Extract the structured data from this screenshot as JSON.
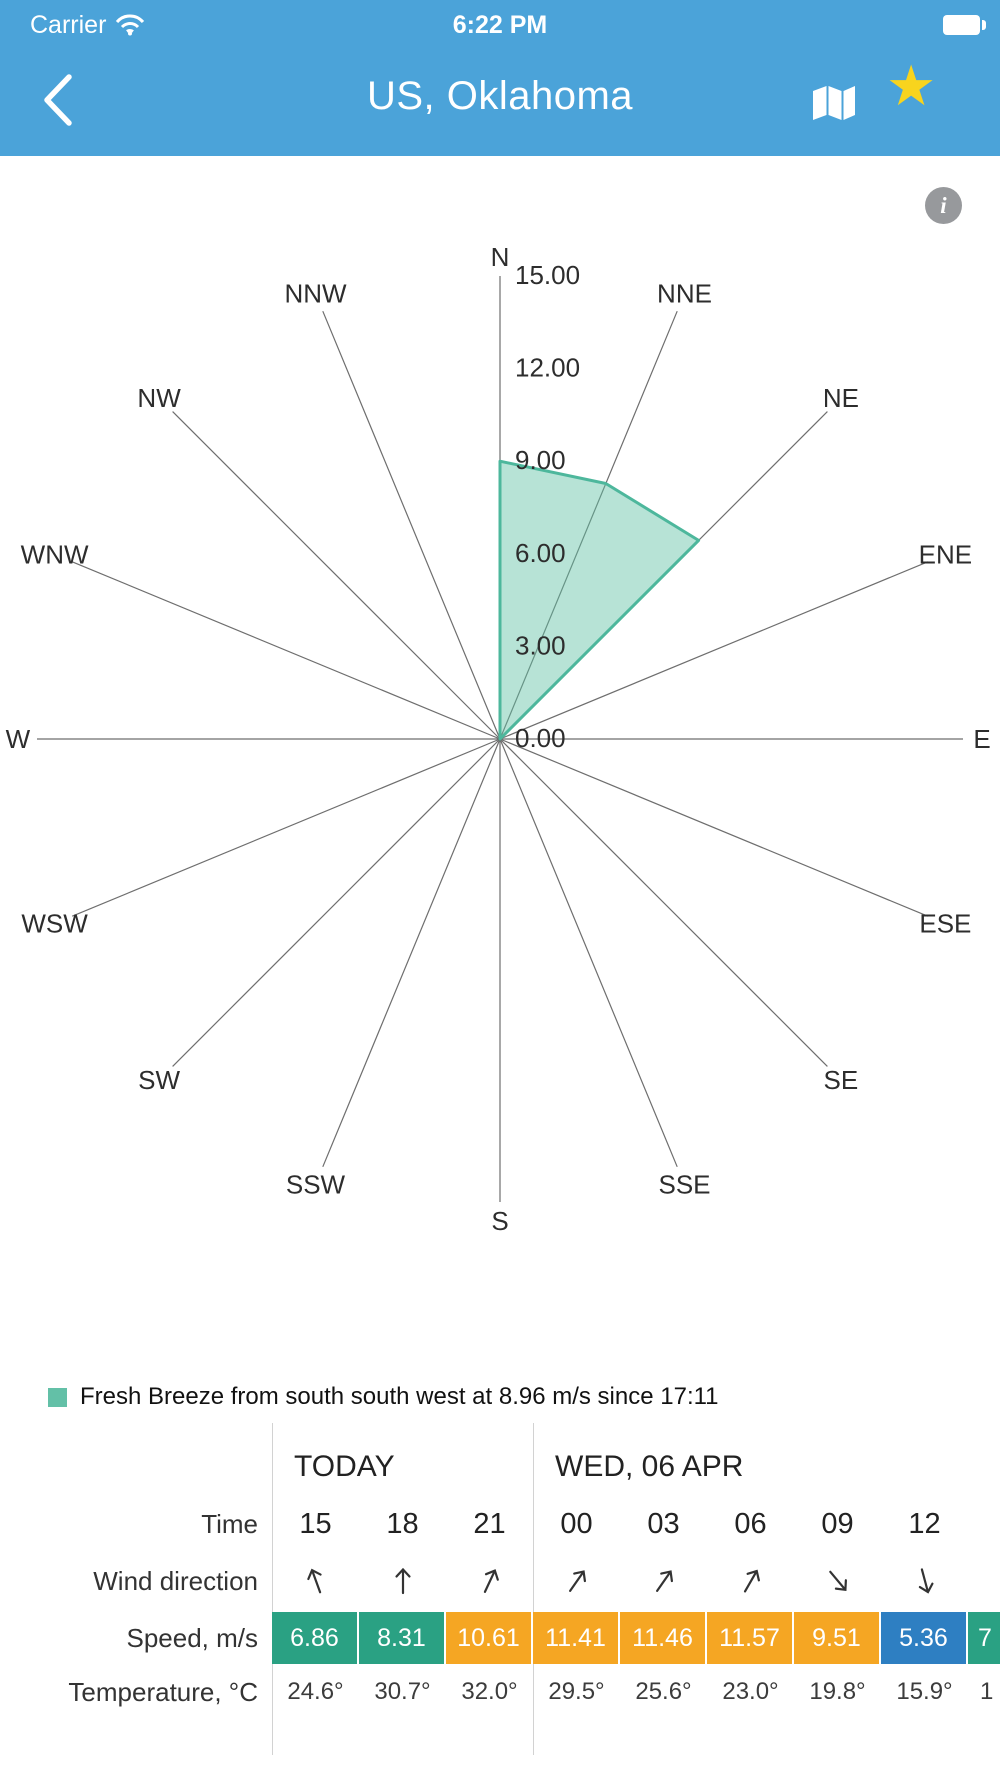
{
  "status_bar": {
    "carrier": "Carrier",
    "time": "6:22 PM"
  },
  "nav_bar": {
    "title": "US, Oklahoma",
    "star_glyph": "★",
    "bar_color": "#4ba3d9",
    "star_color": "#f8d41e"
  },
  "info_button": {
    "label": "i"
  },
  "chart_data": {
    "type": "wind-rose",
    "directions": [
      "N",
      "NNE",
      "NE",
      "ENE",
      "E",
      "ESE",
      "SE",
      "SSE",
      "S",
      "SSW",
      "SW",
      "WSW",
      "W",
      "WNW",
      "NW",
      "NNW"
    ],
    "values": [
      9.0,
      8.96,
      9.1,
      0,
      0,
      0,
      0,
      0,
      0,
      0,
      0,
      0,
      0,
      0,
      0,
      0
    ],
    "tick_values": [
      0,
      3,
      6,
      9,
      12,
      15
    ],
    "tick_labels": [
      "0.00",
      "3.00",
      "6.00",
      "9.00",
      "12.00",
      "15.00"
    ],
    "rmax": 15,
    "units": "m/s",
    "sector_fill": "#5fc0a5",
    "sector_fill_opacity": 0.45,
    "sector_stroke": "#4db79c",
    "axis_color": "#6e6e6e"
  },
  "legend": {
    "swatch_color": "#63c0a7",
    "text": "Fresh Breeze from south south west at 8.96 m/s since 17:11"
  },
  "forecast_table": {
    "groups": [
      {
        "label": "TODAY",
        "span": 3
      },
      {
        "label": "WED, 06 APR",
        "span": 6
      }
    ],
    "row_labels": {
      "time": "Time",
      "wind": "Wind direction",
      "speed": "Speed, m/s",
      "temp": "Temperature, °C"
    },
    "columns": [
      {
        "time": "15",
        "wind_deg": -20,
        "speed": "6.86",
        "speed_color": "#2aa183",
        "temp": "24.6°"
      },
      {
        "time": "18",
        "wind_deg": 0,
        "speed": "8.31",
        "speed_color": "#2aa183",
        "temp": "30.7°"
      },
      {
        "time": "21",
        "wind_deg": 25,
        "speed": "10.61",
        "speed_color": "#f5a623",
        "temp": "32.0°"
      },
      {
        "time": "00",
        "wind_deg": 35,
        "speed": "11.41",
        "speed_color": "#f5a623",
        "temp": "29.5°"
      },
      {
        "time": "03",
        "wind_deg": 35,
        "speed": "11.46",
        "speed_color": "#f5a623",
        "temp": "25.6°"
      },
      {
        "time": "06",
        "wind_deg": 30,
        "speed": "11.57",
        "speed_color": "#f5a623",
        "temp": "23.0°"
      },
      {
        "time": "09",
        "wind_deg": 140,
        "speed": "9.51",
        "speed_color": "#f5a623",
        "temp": "19.8°"
      },
      {
        "time": "12",
        "wind_deg": 165,
        "speed": "5.36",
        "speed_color": "#2e7fc2",
        "temp": "15.9°"
      },
      {
        "time": "",
        "wind_deg": null,
        "speed": "7",
        "speed_color": "#2aa183",
        "temp": "1",
        "partial": true
      }
    ]
  }
}
